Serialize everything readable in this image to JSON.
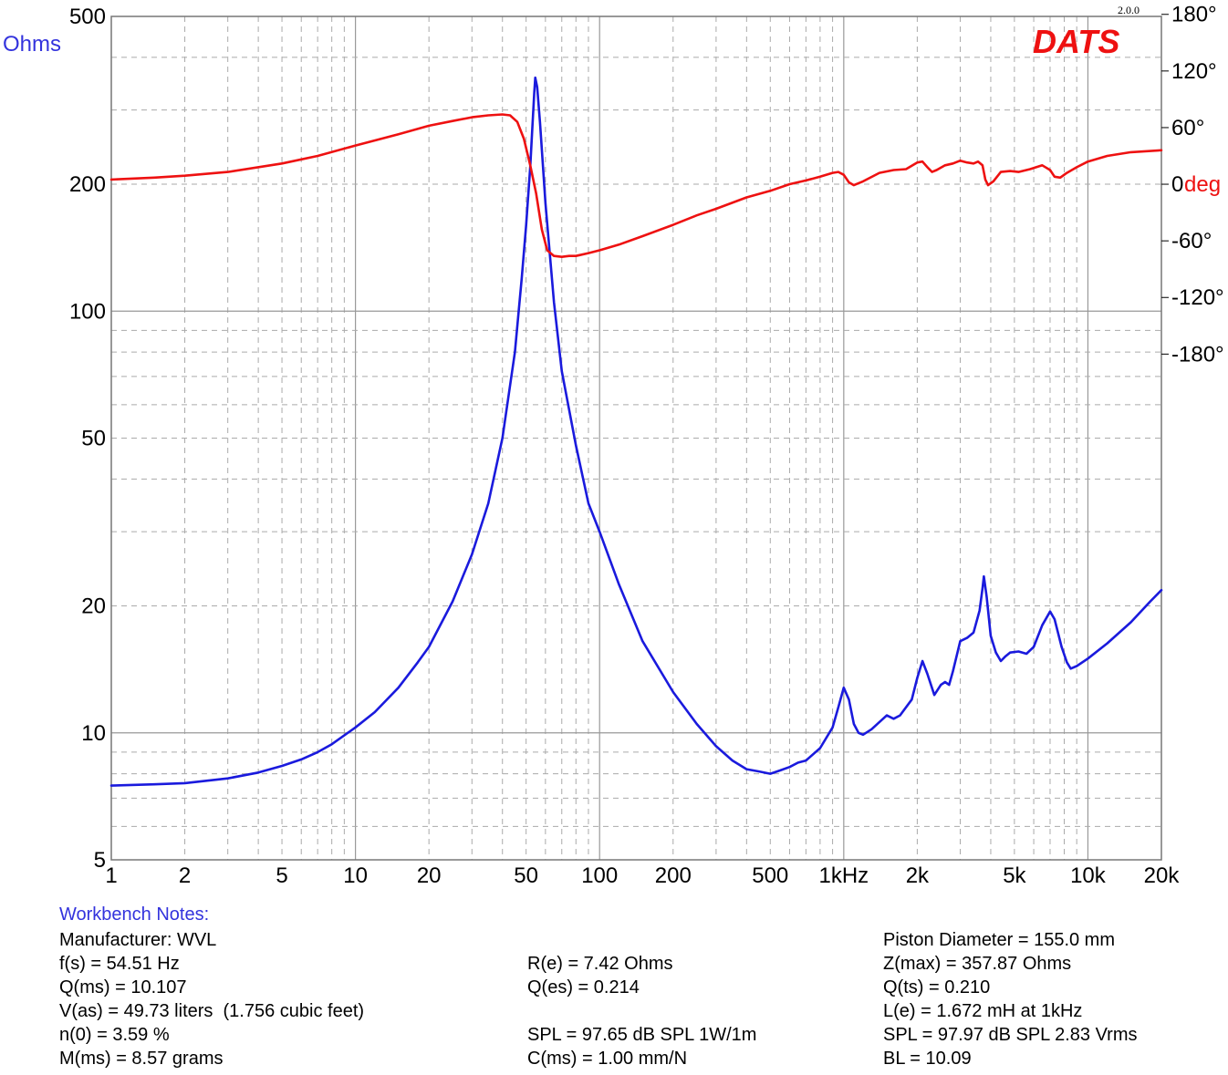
{
  "chart_data": {
    "type": "line",
    "logo": "DATS",
    "version": "2.0.0",
    "left_axis_label": "Ohms",
    "right_axis_unit": "deg",
    "x_scale": "log",
    "x_range": [
      1,
      20000
    ],
    "y_left_scale": "log",
    "y_left_range": [
      5,
      500
    ],
    "y_right_range": [
      -180,
      180
    ],
    "x_ticks": [
      {
        "value": 1,
        "label": "1"
      },
      {
        "value": 2,
        "label": "2"
      },
      {
        "value": 5,
        "label": "5"
      },
      {
        "value": 10,
        "label": "10"
      },
      {
        "value": 20,
        "label": "20"
      },
      {
        "value": 50,
        "label": "50"
      },
      {
        "value": 100,
        "label": "100"
      },
      {
        "value": 200,
        "label": "200"
      },
      {
        "value": 500,
        "label": "500"
      },
      {
        "value": 1000,
        "label": "1kHz"
      },
      {
        "value": 2000,
        "label": "2k"
      },
      {
        "value": 5000,
        "label": "5k"
      },
      {
        "value": 10000,
        "label": "10k"
      },
      {
        "value": 20000,
        "label": "20k"
      }
    ],
    "y_left_ticks": [
      {
        "value": 500,
        "label": "500"
      },
      {
        "value": 200,
        "label": "200"
      },
      {
        "value": 100,
        "label": "100"
      },
      {
        "value": 50,
        "label": "50"
      },
      {
        "value": 20,
        "label": "20"
      },
      {
        "value": 10,
        "label": "10"
      },
      {
        "value": 5,
        "label": "5"
      }
    ],
    "y_right_ticks": [
      {
        "value": 180,
        "label": "180°"
      },
      {
        "value": 120,
        "label": "120°"
      },
      {
        "value": 60,
        "label": "60°"
      },
      {
        "value": 0,
        "label": "0"
      },
      {
        "value": -60,
        "label": "-60°"
      },
      {
        "value": -120,
        "label": "-120°"
      },
      {
        "value": -180,
        "label": "-180°"
      }
    ],
    "grid": true,
    "series": [
      {
        "color": "#1a1add",
        "axis": "left",
        "points": [
          [
            1,
            7.5
          ],
          [
            1.5,
            7.55
          ],
          [
            2,
            7.6
          ],
          [
            3,
            7.8
          ],
          [
            4,
            8.05
          ],
          [
            5,
            8.35
          ],
          [
            6,
            8.65
          ],
          [
            7,
            9.0
          ],
          [
            8,
            9.4
          ],
          [
            10,
            10.3
          ],
          [
            12,
            11.2
          ],
          [
            15,
            12.8
          ],
          [
            18,
            14.7
          ],
          [
            20,
            16.0
          ],
          [
            25,
            20.5
          ],
          [
            30,
            26.5
          ],
          [
            35,
            35
          ],
          [
            40,
            50
          ],
          [
            45,
            80
          ],
          [
            48,
            120
          ],
          [
            50,
            160
          ],
          [
            52,
            220
          ],
          [
            53,
            270
          ],
          [
            54,
            330
          ],
          [
            54.5,
            357.87
          ],
          [
            55.5,
            340
          ],
          [
            57,
            280
          ],
          [
            60,
            180
          ],
          [
            65,
            105
          ],
          [
            70,
            72
          ],
          [
            80,
            48
          ],
          [
            90,
            35
          ],
          [
            100,
            30
          ],
          [
            120,
            22.5
          ],
          [
            150,
            16.5
          ],
          [
            200,
            12.5
          ],
          [
            250,
            10.5
          ],
          [
            300,
            9.3
          ],
          [
            350,
            8.6
          ],
          [
            400,
            8.2
          ],
          [
            450,
            8.1
          ],
          [
            500,
            8.0
          ],
          [
            550,
            8.15
          ],
          [
            600,
            8.3
          ],
          [
            650,
            8.5
          ],
          [
            700,
            8.6
          ],
          [
            800,
            9.2
          ],
          [
            900,
            10.3
          ],
          [
            950,
            11.5
          ],
          [
            1000,
            12.8
          ],
          [
            1050,
            12.0
          ],
          [
            1100,
            10.5
          ],
          [
            1150,
            10.0
          ],
          [
            1200,
            9.9
          ],
          [
            1300,
            10.2
          ],
          [
            1500,
            11.0
          ],
          [
            1600,
            10.8
          ],
          [
            1700,
            11.0
          ],
          [
            1900,
            12.0
          ],
          [
            2000,
            13.5
          ],
          [
            2100,
            14.8
          ],
          [
            2200,
            13.8
          ],
          [
            2350,
            12.3
          ],
          [
            2500,
            13.0
          ],
          [
            2600,
            13.2
          ],
          [
            2700,
            13.0
          ],
          [
            2800,
            14.0
          ],
          [
            3000,
            16.5
          ],
          [
            3200,
            16.8
          ],
          [
            3400,
            17.3
          ],
          [
            3600,
            19.5
          ],
          [
            3700,
            22.0
          ],
          [
            3750,
            23.5
          ],
          [
            3850,
            21.0
          ],
          [
            4000,
            17.0
          ],
          [
            4200,
            15.5
          ],
          [
            4400,
            14.8
          ],
          [
            4600,
            15.2
          ],
          [
            4800,
            15.5
          ],
          [
            5200,
            15.6
          ],
          [
            5600,
            15.4
          ],
          [
            6000,
            16.0
          ],
          [
            6500,
            18.0
          ],
          [
            7000,
            19.4
          ],
          [
            7300,
            18.6
          ],
          [
            7800,
            16.0
          ],
          [
            8200,
            14.7
          ],
          [
            8500,
            14.2
          ],
          [
            9000,
            14.4
          ],
          [
            10000,
            15.0
          ],
          [
            12000,
            16.3
          ],
          [
            15000,
            18.3
          ],
          [
            18000,
            20.5
          ],
          [
            20000,
            21.8
          ]
        ]
      },
      {
        "color": "#ee1111",
        "axis": "right",
        "points": [
          [
            1,
            5
          ],
          [
            1.5,
            7
          ],
          [
            2,
            9
          ],
          [
            3,
            13
          ],
          [
            5,
            22
          ],
          [
            7,
            30
          ],
          [
            10,
            41
          ],
          [
            15,
            53
          ],
          [
            20,
            62
          ],
          [
            25,
            67
          ],
          [
            30,
            71
          ],
          [
            35,
            73
          ],
          [
            40,
            74
          ],
          [
            43,
            73
          ],
          [
            46,
            66
          ],
          [
            49,
            48
          ],
          [
            52,
            20
          ],
          [
            55,
            -10
          ],
          [
            58,
            -48
          ],
          [
            61,
            -70
          ],
          [
            65,
            -76
          ],
          [
            70,
            -77
          ],
          [
            75,
            -76
          ],
          [
            80,
            -76
          ],
          [
            90,
            -73
          ],
          [
            100,
            -70
          ],
          [
            120,
            -64
          ],
          [
            150,
            -55
          ],
          [
            200,
            -43
          ],
          [
            250,
            -33
          ],
          [
            300,
            -26
          ],
          [
            400,
            -14
          ],
          [
            500,
            -7
          ],
          [
            600,
            0
          ],
          [
            700,
            4
          ],
          [
            800,
            8
          ],
          [
            900,
            12
          ],
          [
            950,
            13
          ],
          [
            1000,
            10
          ],
          [
            1050,
            2
          ],
          [
            1100,
            -1
          ],
          [
            1200,
            3
          ],
          [
            1400,
            12
          ],
          [
            1600,
            15
          ],
          [
            1800,
            16
          ],
          [
            2000,
            23
          ],
          [
            2100,
            24
          ],
          [
            2200,
            18
          ],
          [
            2300,
            13
          ],
          [
            2400,
            15
          ],
          [
            2600,
            20
          ],
          [
            2800,
            22
          ],
          [
            3000,
            25
          ],
          [
            3200,
            23
          ],
          [
            3400,
            22
          ],
          [
            3550,
            24
          ],
          [
            3700,
            20
          ],
          [
            3800,
            5
          ],
          [
            3900,
            -1
          ],
          [
            4100,
            3
          ],
          [
            4400,
            13
          ],
          [
            4800,
            14
          ],
          [
            5200,
            13
          ],
          [
            5800,
            16
          ],
          [
            6500,
            20
          ],
          [
            7000,
            15
          ],
          [
            7300,
            8
          ],
          [
            7700,
            7
          ],
          [
            8200,
            12
          ],
          [
            9000,
            18
          ],
          [
            10000,
            24
          ],
          [
            12000,
            30
          ],
          [
            15000,
            34
          ],
          [
            20000,
            36
          ]
        ]
      }
    ]
  },
  "notes": {
    "title": "Workbench Notes:",
    "col1": [
      "Manufacturer: WVL",
      "f(s) = 54.51 Hz",
      "Q(ms) = 10.107",
      "V(as) = 49.73 liters  (1.756 cubic feet)",
      "n(0) = 3.59 %",
      "M(ms) = 8.57 grams"
    ],
    "col2": [
      "R(e) = 7.42 Ohms",
      "Q(es) = 0.214",
      "",
      "SPL = 97.65 dB SPL 1W/1m",
      "C(ms) = 1.00 mm/N"
    ],
    "col3": [
      "Piston Diameter = 155.0 mm",
      "Z(max) = 357.87 Ohms",
      "Q(ts) = 0.210",
      "L(e) = 1.672 mH at 1kHz",
      "SPL = 97.97 dB SPL 2.83 Vrms",
      "BL = 10.09"
    ]
  }
}
